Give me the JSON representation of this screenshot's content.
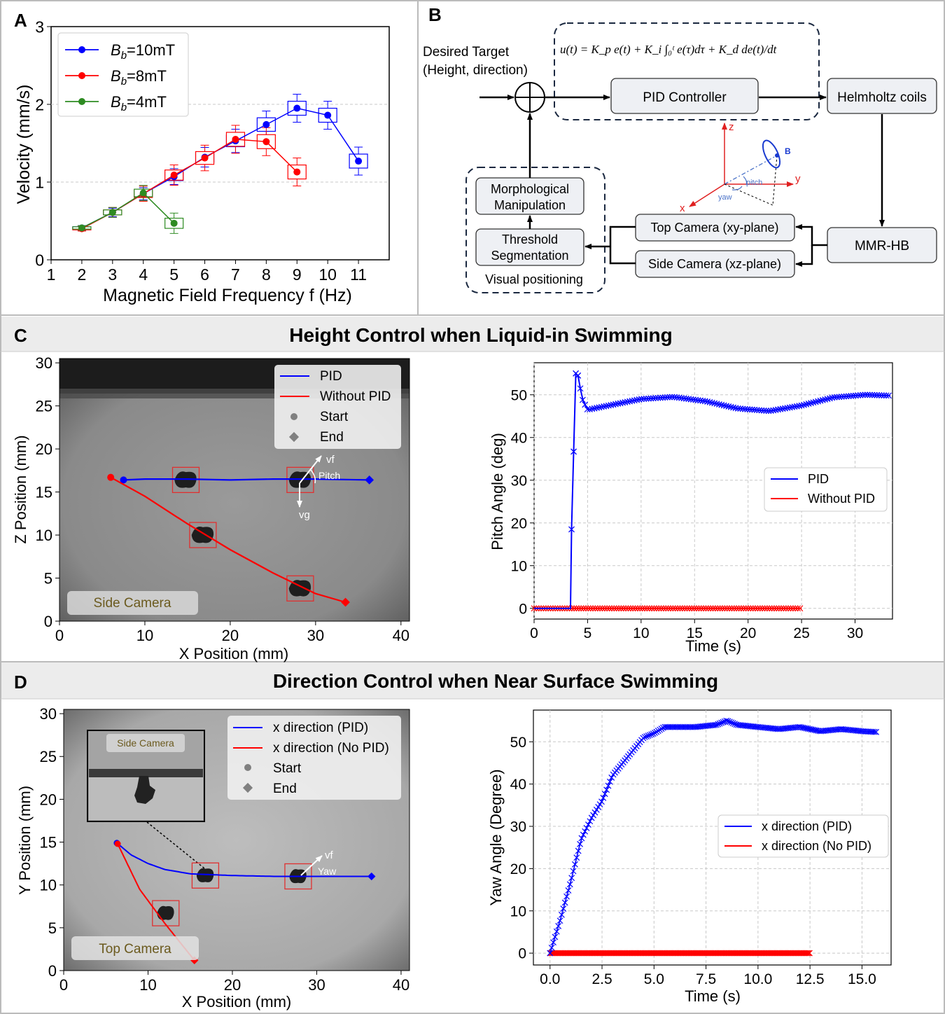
{
  "panels": {
    "A": {
      "letter": "A"
    },
    "B": {
      "letter": "B"
    },
    "C": {
      "letter": "C",
      "title": "Height Control when Liquid-in Swimming"
    },
    "D": {
      "letter": "D",
      "title": "Direction Control when Near Surface Swimming"
    }
  },
  "colors": {
    "blue": "#0000ff",
    "red": "#ff0000",
    "green": "#2e8b22",
    "banner": "#ececec",
    "border": "#bbbbbb",
    "camText": "#6b5a1e"
  },
  "diagram": {
    "target_line1": "Desired Target",
    "target_line2": "(Height, direction)",
    "equation": "u(t) = K_p e(t) + K_i ∫₀ᵗ e(τ)dτ + K_d de(t)/dt",
    "pid": "PID Controller",
    "helmholtz": "Helmholtz coils",
    "mmr": "MMR-HB",
    "top_cam": "Top Camera (xy-plane)",
    "side_cam": "Side Camera (xz-plane)",
    "morph1": "Morphological",
    "morph2": "Manipulation",
    "thresh1": "Threshold",
    "thresh2": "Segmentation",
    "visual": "Visual positioning",
    "axis_z": "z",
    "axis_y": "y",
    "axis_x": "x",
    "axis_b": "B",
    "pitch": "pitch",
    "yaw": "yaw"
  },
  "chart_data": [
    {
      "id": "A",
      "type": "line",
      "xlabel": "Magnetic Field Frequency f (Hz)",
      "ylabel": "Velocity (mm/s)",
      "xlim": [
        1,
        12
      ],
      "ylim": [
        0,
        3
      ],
      "xticks": [
        1,
        2,
        3,
        4,
        5,
        6,
        7,
        8,
        9,
        10,
        11
      ],
      "yticks": [
        0,
        1,
        2,
        3
      ],
      "series": [
        {
          "name": "Bb=10mT",
          "color": "#0000ff",
          "x": [
            2,
            3,
            4,
            5,
            6,
            7,
            8,
            9,
            10,
            11
          ],
          "y": [
            0.41,
            0.61,
            0.85,
            1.07,
            1.32,
            1.53,
            1.74,
            1.95,
            1.86,
            1.27
          ]
        },
        {
          "name": "Bb=8mT",
          "color": "#ff0000",
          "x": [
            2,
            3,
            4,
            5,
            6,
            7,
            8,
            9
          ],
          "y": [
            0.4,
            0.61,
            0.85,
            1.09,
            1.31,
            1.55,
            1.52,
            1.13
          ]
        },
        {
          "name": "Bb=4mT",
          "color": "#2e8b22",
          "x": [
            2,
            3,
            4,
            5
          ],
          "y": [
            0.41,
            0.61,
            0.86,
            0.47
          ]
        }
      ]
    },
    {
      "id": "C1",
      "type": "line",
      "xlabel": "X Position (mm)",
      "ylabel": "Z Position (mm)",
      "xlim": [
        0,
        41
      ],
      "ylim": [
        0,
        30.5
      ],
      "xticks": [
        0,
        10,
        20,
        30,
        40
      ],
      "yticks": [
        0,
        5,
        10,
        15,
        20,
        25,
        30
      ],
      "camera_label": "Side Camera",
      "annotations": [
        "vf",
        "Pitch",
        "vg"
      ],
      "legend": [
        "PID",
        "Without PID",
        "Start",
        "End"
      ],
      "series": [
        {
          "name": "PID",
          "color": "#0000ff",
          "x": [
            7.5,
            10,
            15,
            20,
            25,
            30,
            36.3
          ],
          "y": [
            16.4,
            16.5,
            16.5,
            16.4,
            16.5,
            16.5,
            16.4
          ]
        },
        {
          "name": "Without PID",
          "color": "#ff0000",
          "x": [
            6,
            10,
            15,
            20,
            25,
            30,
            33.5
          ],
          "y": [
            16.7,
            14.5,
            11.3,
            8.3,
            5.6,
            3.2,
            2.2
          ]
        }
      ]
    },
    {
      "id": "C2",
      "type": "line",
      "xlabel": "Time (s)",
      "ylabel": "Pitch Angle (deg)",
      "xlim": [
        0,
        33.5
      ],
      "ylim": [
        -2.5,
        57.5
      ],
      "xticks": [
        0,
        5,
        10,
        15,
        20,
        25,
        30
      ],
      "yticks": [
        0,
        10,
        20,
        30,
        40,
        50
      ],
      "legend": [
        "PID",
        "Without PID"
      ],
      "series": [
        {
          "name": "PID",
          "color": "#0000ff",
          "x": [
            0,
            3.4,
            3.5,
            3.7,
            3.9,
            4.1,
            4.5,
            5,
            7,
            10,
            13,
            16,
            19,
            22,
            25,
            28,
            31,
            33.3
          ],
          "y": [
            0,
            0,
            18.5,
            36.7,
            55,
            54.5,
            49,
            46.5,
            47.5,
            49,
            49.5,
            48.5,
            46.8,
            46.2,
            47.5,
            49.4,
            50,
            49.8
          ]
        },
        {
          "name": "Without PID",
          "color": "#ff0000",
          "x": [
            0,
            25
          ],
          "y": [
            0,
            0
          ]
        }
      ]
    },
    {
      "id": "D1",
      "type": "line",
      "xlabel": "X Position (mm)",
      "ylabel": "Y Position (mm)",
      "xlim": [
        0,
        41
      ],
      "ylim": [
        0,
        30.5
      ],
      "xticks": [
        0,
        10,
        20,
        30,
        40
      ],
      "yticks": [
        0,
        5,
        10,
        15,
        20,
        25,
        30
      ],
      "camera_label": "Top Camera",
      "inset_label": "Side Camera",
      "annotations": [
        "vf",
        "Yaw"
      ],
      "legend": [
        "x direction (PID)",
        "x direction (No PID)",
        "Start",
        "End"
      ],
      "series": [
        {
          "name": "x direction (PID)",
          "color": "#0000ff",
          "x": [
            6.3,
            8,
            10,
            12,
            15,
            20,
            25,
            30,
            36.5
          ],
          "y": [
            14.9,
            13.5,
            12.5,
            11.8,
            11.3,
            11.1,
            11,
            11,
            11
          ]
        },
        {
          "name": "x direction (No PID)",
          "color": "#ff0000",
          "x": [
            6.4,
            9,
            12,
            15.5
          ],
          "y": [
            14.8,
            9.5,
            5.5,
            1.2
          ]
        }
      ]
    },
    {
      "id": "D2",
      "type": "line",
      "xlabel": "Time (s)",
      "ylabel": "Yaw Angle (Degree)",
      "xlim": [
        -0.8,
        16.4
      ],
      "ylim": [
        -2.8,
        57.5
      ],
      "xticks": [
        0.0,
        2.5,
        5.0,
        7.5,
        10.0,
        12.5,
        15.0
      ],
      "yticks": [
        0,
        10,
        20,
        30,
        40,
        50
      ],
      "legend": [
        "x direction (PID)",
        "x direction (No PID)"
      ],
      "series": [
        {
          "name": "x direction (PID)",
          "color": "#0000ff",
          "x": [
            0,
            0.5,
            1,
            1.5,
            2,
            2.5,
            3,
            3.5,
            4,
            4.5,
            5,
            5.5,
            6,
            7,
            8,
            8.5,
            9,
            10,
            11,
            12,
            13,
            14,
            15,
            15.7
          ],
          "y": [
            0,
            8,
            17,
            27,
            32,
            36,
            42,
            45,
            48,
            51,
            52,
            53.5,
            53.5,
            53.5,
            54,
            55,
            54,
            53.5,
            53,
            53.5,
            52.5,
            53,
            52.5,
            52.3
          ]
        },
        {
          "name": "x direction (No PID)",
          "color": "#ff0000",
          "x": [
            0,
            12.5
          ],
          "y": [
            0,
            0
          ]
        }
      ]
    }
  ]
}
